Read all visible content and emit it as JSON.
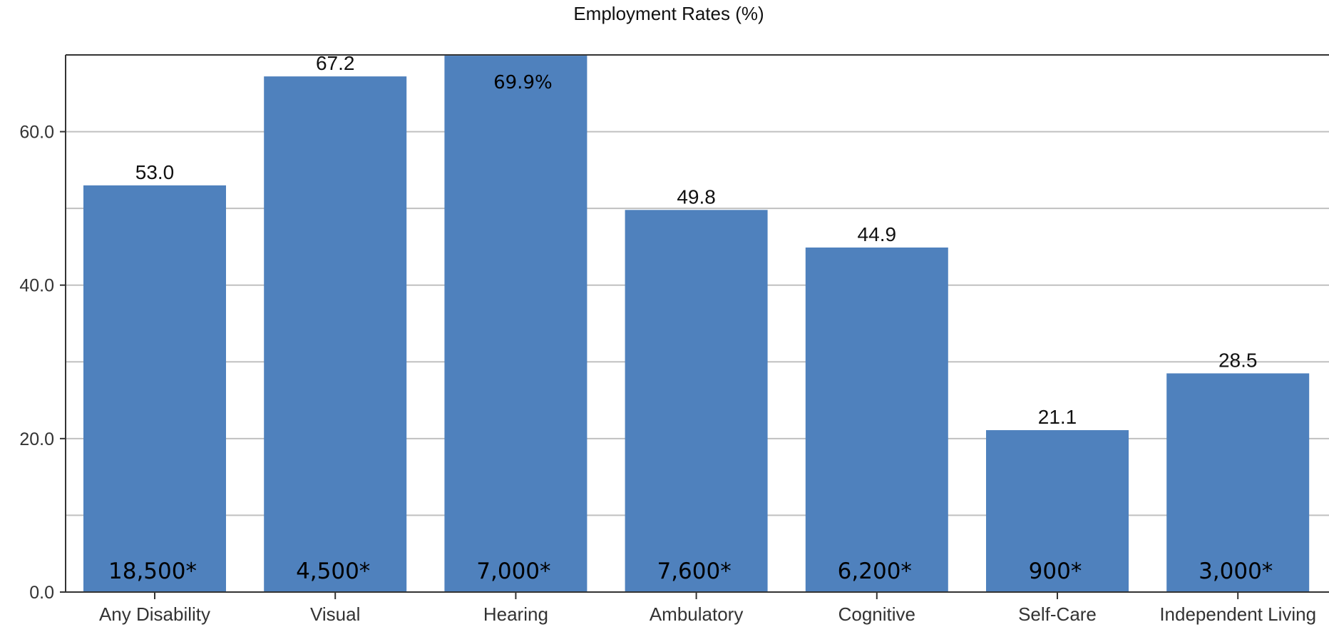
{
  "chart_data": {
    "type": "bar",
    "title": "Employment Rates (%)",
    "xlabel": "",
    "ylabel": "",
    "ylim": [
      0,
      70
    ],
    "yticks": [
      "0.0",
      "20.0",
      "40.0",
      "60.0"
    ],
    "grid": true,
    "categories": [
      "Any Disability",
      "Visual",
      "Hearing",
      "Ambulatory",
      "Cognitive",
      "Self-Care",
      "Independent Living"
    ],
    "values": [
      53.0,
      67.2,
      69.9,
      49.8,
      44.9,
      21.1,
      28.5
    ],
    "value_labels": [
      "53.0",
      "67.2",
      "69.9%",
      "49.8",
      "44.9",
      "21.1",
      "28.5"
    ],
    "count_labels": [
      "18,500*",
      "4,500*",
      "7,000*",
      "7,600*",
      "6,200*",
      "900*",
      "3,000*"
    ],
    "colors": {
      "bar": "#4F81BD",
      "grid": "#C0C0C0",
      "axis": "#333333"
    }
  }
}
